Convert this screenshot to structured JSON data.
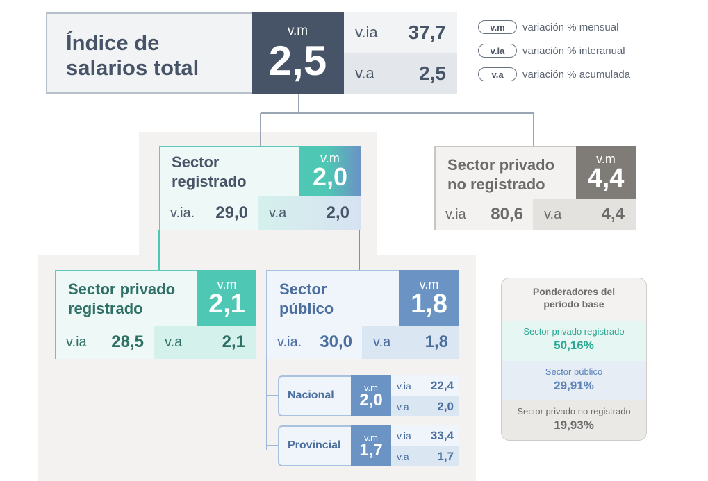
{
  "legend": [
    {
      "tag": "v.m",
      "text": "variación % mensual"
    },
    {
      "tag": "v.ia",
      "text": "variación % interanual"
    },
    {
      "tag": "v.a",
      "text": "variación % acumulada"
    }
  ],
  "total": {
    "title_line1": "Índice de",
    "title_line2": "salarios total",
    "vm_label": "v.m",
    "vm": "2,5",
    "via_label": "v.ia",
    "via": "37,7",
    "va_label": "v.a",
    "va": "2,5"
  },
  "registrado": {
    "title_line1": "Sector",
    "title_line2": "registrado",
    "vm_label": "v.m",
    "vm": "2,0",
    "via_label": "v.ia.",
    "via": "29,0",
    "va_label": "v.a",
    "va": "2,0"
  },
  "no_registrado": {
    "title_line1": "Sector privado",
    "title_line2": "no registrado",
    "vm_label": "v.m",
    "vm": "4,4",
    "via_label": "v.ia",
    "via": "80,6",
    "va_label": "v.a",
    "va": "4,4"
  },
  "privado_registrado": {
    "title_line1": "Sector privado",
    "title_line2": "registrado",
    "vm_label": "v.m",
    "vm": "2,1",
    "via_label": "v.ia",
    "via": "28,5",
    "va_label": "v.a",
    "va": "2,1"
  },
  "publico": {
    "title_line1": "Sector",
    "title_line2": "público",
    "vm_label": "v.m",
    "vm": "1,8",
    "via_label": "v.ia.",
    "via": "30,0",
    "va_label": "v.a",
    "va": "1,8"
  },
  "nacional": {
    "title": "Nacional",
    "vm_label": "v.m",
    "vm": "2,0",
    "via_label": "v.ia",
    "via": "22,4",
    "va_label": "v.a",
    "va": "2,0"
  },
  "provincial": {
    "title": "Provincial",
    "vm_label": "v.m",
    "vm": "1,7",
    "via_label": "v.ia",
    "via": "33,4",
    "va_label": "v.a",
    "va": "1,7"
  },
  "ponderadores": {
    "title_line1": "Ponderadores del",
    "title_line2": "período base",
    "items": [
      {
        "label": "Sector privado registrado",
        "value": "50,16%"
      },
      {
        "label": "Sector público",
        "value": "29,91%"
      },
      {
        "label": "Sector privado no registrado",
        "value": "19,93%"
      }
    ]
  },
  "colors": {
    "dark": "#475467",
    "teal": "#4fc7b5",
    "blue": "#6b93c4",
    "gray": "#7f7b77",
    "teal_text": "#2aa893",
    "blue_text": "#5a82b8",
    "gray_text": "#6b6b6b"
  }
}
